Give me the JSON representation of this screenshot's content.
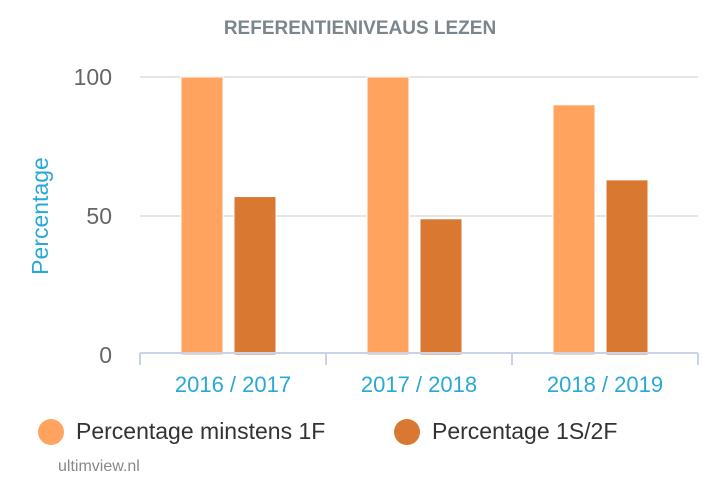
{
  "chart_data": {
    "type": "bar",
    "title": "REFERENTIENIVEAUS LEZEN",
    "xlabel": "",
    "ylabel": "Percentage",
    "ylim": [
      0,
      100
    ],
    "yticks": [
      0,
      50,
      100
    ],
    "grid": true,
    "legend_position": "bottom-left",
    "categories": [
      "2016 / 2017",
      "2017 / 2018",
      "2018 / 2019"
    ],
    "series": [
      {
        "name": "Percentage minstens 1F",
        "color": "#ffa35f",
        "values": [
          100,
          100,
          90
        ]
      },
      {
        "name": "Percentage 1S/2F",
        "color": "#d97830",
        "values": [
          57,
          49,
          63
        ]
      }
    ]
  },
  "credit": "ultimview.nl"
}
